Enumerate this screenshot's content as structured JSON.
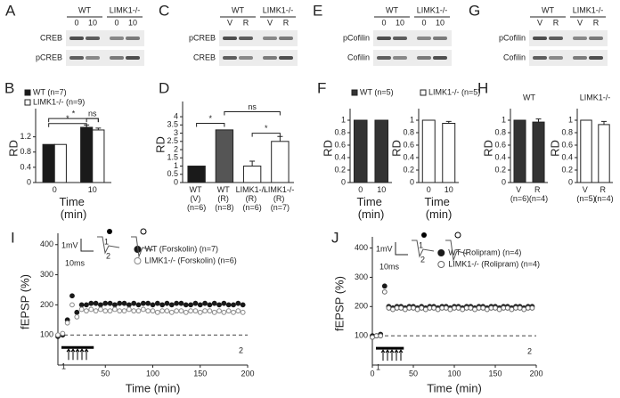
{
  "blots": [
    {
      "label": "A",
      "groups": [
        "WT",
        "LIMK1-/-"
      ],
      "lanes": [
        "0",
        "10",
        "0",
        "10"
      ],
      "rows": [
        "CREB",
        "pCREB"
      ]
    },
    {
      "label": "C",
      "groups": [
        "WT",
        "LIMK1-/-"
      ],
      "lanes": [
        "V",
        "R",
        "V",
        "R"
      ],
      "rows": [
        "pCREB",
        "CREB"
      ]
    },
    {
      "label": "E",
      "groups": [
        "WT",
        "LIMK1-/-"
      ],
      "lanes": [
        "0",
        "10",
        "0",
        "10"
      ],
      "rows": [
        "pCofilin",
        "Cofilin"
      ]
    },
    {
      "label": "G",
      "groups": [
        "WT",
        "LIMK1-/-"
      ],
      "lanes": [
        "V",
        "R",
        "V",
        "R"
      ],
      "rows": [
        "pCofilin",
        "Cofilin"
      ]
    }
  ],
  "chart_data": [
    {
      "type": "bar",
      "label": "B",
      "ylabel": "RD",
      "xlabel": "Time (min)",
      "categories": [
        "0",
        "10"
      ],
      "series": [
        {
          "name": "WT (n=7)",
          "color": "#1a1a1a",
          "values": [
            1.0,
            1.45
          ],
          "errors": [
            0,
            0.06
          ]
        },
        {
          "name": "LIMK1-/- (n=9)",
          "color": "#ffffff",
          "values": [
            1.0,
            1.38
          ],
          "errors": [
            0,
            0.05
          ]
        }
      ],
      "ylim": [
        0,
        1.8
      ],
      "yticks": [
        0,
        0.4,
        0.8,
        1.2
      ],
      "annotations": [
        {
          "text": "*",
          "between": [
            0,
            2
          ],
          "y": 1.55
        },
        {
          "text": "*",
          "between": [
            0,
            3
          ],
          "y": 1.68
        },
        {
          "text": "ns",
          "between": [
            2,
            3
          ],
          "y": 1.68
        }
      ]
    },
    {
      "type": "bar",
      "label": "D",
      "ylabel": "RD",
      "categories": [
        "WT (V) (n=6)",
        "WT (R) (n=8)",
        "LIMK1-/- (R) (n=6)",
        "LIMK1-/- (R) (n=7)"
      ],
      "series": [
        {
          "colors": [
            "#1a1a1a",
            "#555555",
            "#ffffff",
            "#ffffff"
          ],
          "color": "#ffffff",
          "values": [
            1.0,
            3.2,
            1.0,
            2.5
          ],
          "errors": [
            0,
            0,
            0.3,
            0.3
          ]
        }
      ],
      "ylim": [
        0,
        4.6
      ],
      "yticks": [
        0,
        0.5,
        1.0,
        1.5,
        2.0,
        2.5,
        3.0,
        3.5,
        4.0
      ],
      "annotations": [
        {
          "text": "*",
          "between": [
            0,
            1
          ],
          "y": 3.6
        },
        {
          "text": "ns",
          "between": [
            1,
            3
          ],
          "y": 4.3
        },
        {
          "text": "*",
          "between": [
            2,
            3
          ],
          "y": 3.0
        }
      ]
    },
    {
      "type": "bar",
      "label": "F",
      "ylabel": "RD",
      "xlabel": "Time (min)",
      "categories": [
        "0",
        "10"
      ],
      "series": [
        {
          "name": "WT (n=5)",
          "color": "#333333",
          "values": [
            1.0,
            1.0
          ],
          "errors": [
            0,
            0
          ]
        }
      ],
      "ylim": [
        0,
        1.1
      ],
      "yticks": [
        0,
        0.2,
        0.4,
        0.6,
        0.8,
        1.0
      ]
    },
    {
      "type": "bar",
      "ylabel": "RD",
      "xlabel": "Time (min)",
      "categories": [
        "0",
        "10"
      ],
      "series": [
        {
          "name": "LIMK1-/- (n=5)",
          "color": "#ffffff",
          "values": [
            1.0,
            0.95
          ],
          "errors": [
            0,
            0.03
          ]
        }
      ],
      "ylim": [
        0,
        1.1
      ],
      "yticks": [
        0,
        0.2,
        0.4,
        0.6,
        0.8,
        1.0
      ]
    },
    {
      "type": "bar",
      "label": "H",
      "title": "WT",
      "ylabel": "RD",
      "categories": [
        "V (n=6)",
        "R (n=4)"
      ],
      "series": [
        {
          "color": "#333333",
          "values": [
            1.0,
            0.97
          ],
          "errors": [
            0,
            0.05
          ]
        }
      ],
      "ylim": [
        0,
        1.1
      ],
      "yticks": [
        0,
        0.2,
        0.4,
        0.6,
        0.8,
        1.0
      ]
    },
    {
      "type": "bar",
      "title": "LIMK1-/-",
      "ylabel": "RD",
      "categories": [
        "V (n=5)",
        "R (n=4)"
      ],
      "series": [
        {
          "color": "#ffffff",
          "values": [
            1.0,
            0.93
          ],
          "errors": [
            0,
            0.05
          ]
        }
      ],
      "ylim": [
        0,
        1.1
      ],
      "yticks": [
        0,
        0.2,
        0.4,
        0.6,
        0.8,
        1.0
      ]
    },
    {
      "type": "scatter",
      "label": "I",
      "ylabel": "fEPSP (%)",
      "xlabel": "Time (min)",
      "baseline": 100,
      "annotations": [
        "1mV",
        "10ms",
        "1",
        "2",
        "1",
        "2"
      ],
      "x": [
        0,
        5,
        10,
        15,
        20,
        25,
        30,
        35,
        40,
        45,
        50,
        55,
        60,
        65,
        70,
        75,
        80,
        85,
        90,
        95,
        100,
        105,
        110,
        115,
        120,
        125,
        130,
        135,
        140,
        145,
        150,
        155,
        160,
        165,
        170,
        175,
        180,
        185,
        190,
        195
      ],
      "series": [
        {
          "name": "WT (Forskolin) (n=7)",
          "color": "#1a1a1a",
          "marker": "filled",
          "values": [
            95,
            100,
            150,
            230,
            175,
            200,
            200,
            205,
            205,
            200,
            205,
            205,
            200,
            205,
            205,
            200,
            205,
            200,
            205,
            205,
            200,
            205,
            200,
            205,
            200,
            205,
            205,
            200,
            200,
            205,
            200,
            205,
            200,
            205,
            200,
            205,
            200,
            200,
            205,
            200
          ]
        },
        {
          "name": "LIMK1-/- (Forskolin) (n=6)",
          "color": "#888888",
          "marker": "open",
          "values": [
            100,
            105,
            140,
            200,
            160,
            185,
            180,
            185,
            180,
            185,
            180,
            180,
            185,
            180,
            180,
            185,
            180,
            180,
            185,
            180,
            180,
            175,
            180,
            180,
            175,
            180,
            180,
            175,
            180,
            180,
            175,
            180,
            180,
            175,
            180,
            175,
            180,
            175,
            180,
            175
          ]
        }
      ],
      "xlim": [
        0,
        200
      ],
      "xticks": [
        50,
        100,
        150,
        200
      ],
      "ylim": [
        0,
        420
      ],
      "yticks": [
        100,
        200,
        300,
        400
      ]
    },
    {
      "type": "scatter",
      "label": "J",
      "ylabel": "fEPSP (%)",
      "xlabel": "Time (min)",
      "baseline": 100,
      "annotations": [
        "1mV",
        "10ms",
        "1",
        "2",
        "1",
        "2"
      ],
      "x": [
        0,
        5,
        10,
        15,
        20,
        25,
        30,
        35,
        40,
        45,
        50,
        55,
        60,
        65,
        70,
        75,
        80,
        85,
        90,
        95,
        100,
        105,
        110,
        115,
        120,
        125,
        130,
        135,
        140,
        145,
        150,
        155,
        160,
        165,
        170,
        175,
        180,
        185,
        190,
        195
      ],
      "series": [
        {
          "name": "WT (Rolipram) (n=4)",
          "color": "#1a1a1a",
          "marker": "filled",
          "values": [
            100,
            100,
            105,
            270,
            200,
            195,
            200,
            200,
            195,
            200,
            200,
            195,
            200,
            195,
            200,
            200,
            195,
            200,
            200,
            195,
            200,
            200,
            195,
            200,
            200,
            195,
            200,
            200,
            195,
            200,
            200,
            195,
            200,
            200,
            195,
            200,
            200,
            195,
            200,
            200
          ]
        },
        {
          "name": "LIMK1-/- (Rolipram) (n=4)",
          "color": "#666666",
          "marker": "open",
          "values": [
            95,
            100,
            100,
            250,
            195,
            190,
            195,
            195,
            190,
            195,
            195,
            190,
            195,
            190,
            195,
            195,
            190,
            195,
            195,
            190,
            195,
            195,
            190,
            195,
            195,
            190,
            195,
            195,
            190,
            195,
            195,
            190,
            195,
            195,
            190,
            195,
            195,
            190,
            195,
            195
          ]
        }
      ],
      "xlim": [
        0,
        200
      ],
      "xticks": [
        0,
        50,
        100,
        150,
        200
      ],
      "ylim": [
        0,
        420
      ],
      "yticks": [
        100,
        200,
        300,
        400
      ]
    }
  ]
}
